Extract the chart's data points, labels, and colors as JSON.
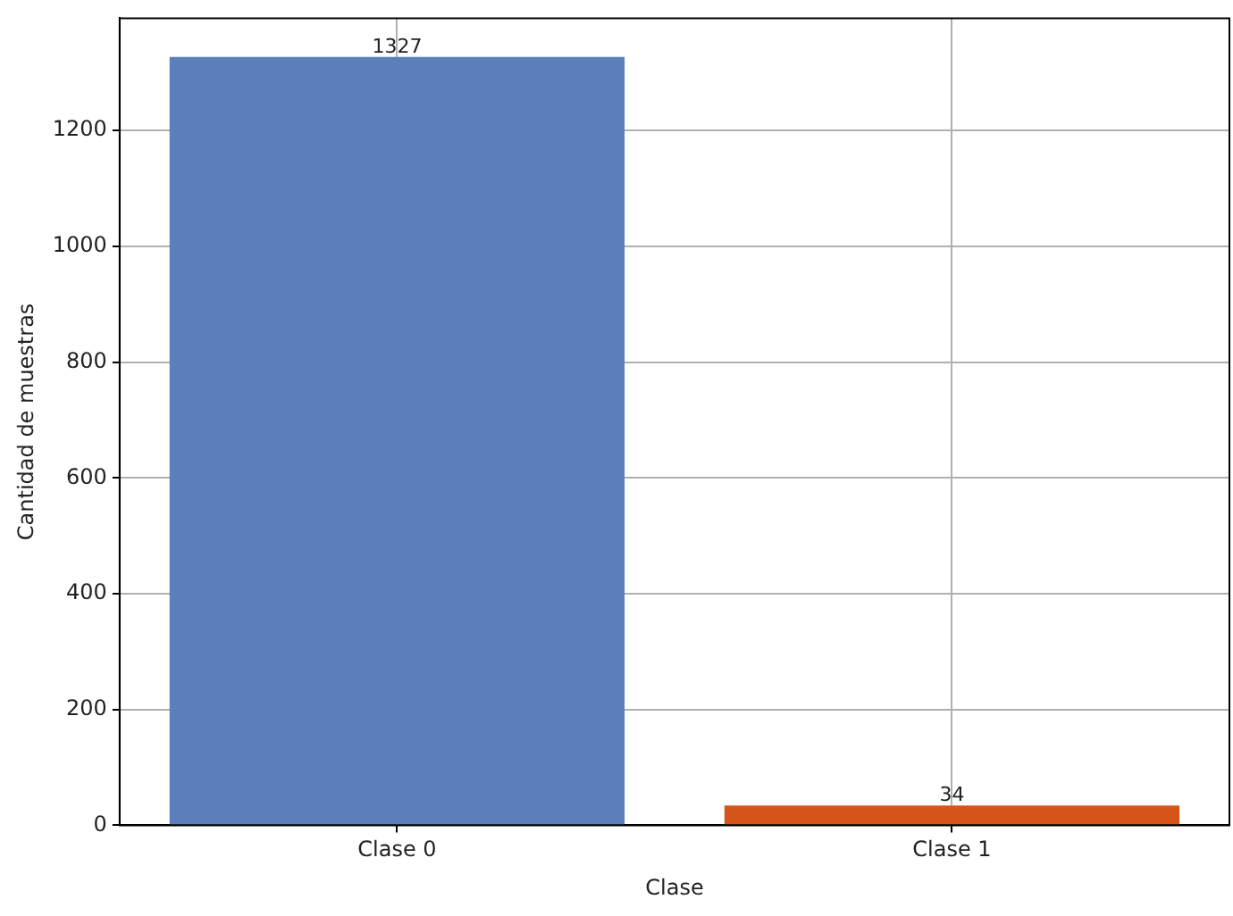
{
  "chart_data": {
    "type": "bar",
    "xlabel": "Clase",
    "ylabel": "Cantidad de muestras",
    "categories": [
      "Clase 0",
      "Clase 1"
    ],
    "values": [
      1327,
      34
    ],
    "colors": [
      "#5b7fbb",
      "#d4541a"
    ],
    "ylim": [
      0,
      1394
    ],
    "yticks": [
      0,
      200,
      400,
      600,
      800,
      1000,
      1200
    ],
    "grid": true,
    "data_labels": true
  }
}
